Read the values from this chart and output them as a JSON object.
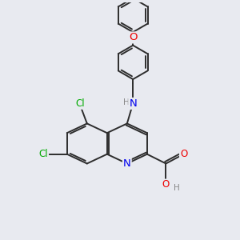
{
  "bg_color": "#e8eaf0",
  "bond_color": "#2d2d2d",
  "bond_width": 1.4,
  "atom_colors": {
    "N": "#0000ee",
    "O": "#ee0000",
    "Cl": "#00aa00",
    "H": "#888888",
    "C": "#2d2d2d"
  },
  "font_size": 8.5
}
